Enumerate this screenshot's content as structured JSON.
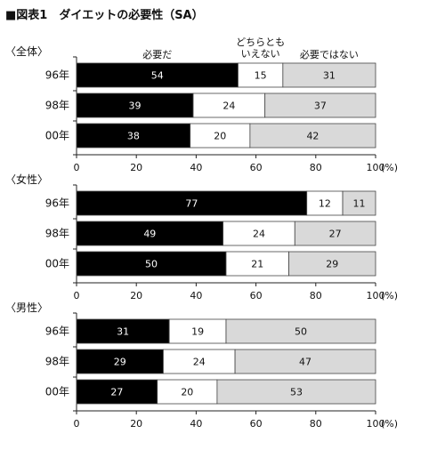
{
  "figure_title": "■図表1　ダイエットの必要性（SA）",
  "axis_unit": "(%)",
  "colors": {
    "series0": "#000000",
    "series1": "#ffffff",
    "series2": "#d9d9d9",
    "stroke": "#444444"
  },
  "chart_data": [
    {
      "type": "bar",
      "orientation": "horizontal",
      "stacked": true,
      "title": "〈全体〉",
      "categories": [
        "96年",
        "98年",
        "00年"
      ],
      "series": [
        {
          "name": "必要だ",
          "values": [
            54,
            39,
            38
          ]
        },
        {
          "name": "どちらとも いえない",
          "values": [
            15,
            24,
            20
          ]
        },
        {
          "name": "必要ではない",
          "values": [
            31,
            37,
            42
          ]
        }
      ],
      "xlim": [
        0,
        100
      ],
      "xticks": [
        "0",
        "20",
        "40",
        "60",
        "80",
        "100"
      ]
    },
    {
      "type": "bar",
      "orientation": "horizontal",
      "stacked": true,
      "title": "〈女性〉",
      "categories": [
        "96年",
        "98年",
        "00年"
      ],
      "series": [
        {
          "name": "必要だ",
          "values": [
            77,
            49,
            50
          ]
        },
        {
          "name": "どちらとも いえない",
          "values": [
            12,
            24,
            21
          ]
        },
        {
          "name": "必要ではない",
          "values": [
            11,
            27,
            29
          ]
        }
      ],
      "xlim": [
        0,
        100
      ],
      "xticks": [
        "0",
        "20",
        "40",
        "60",
        "80",
        "100"
      ]
    },
    {
      "type": "bar",
      "orientation": "horizontal",
      "stacked": true,
      "title": "〈男性〉",
      "categories": [
        "96年",
        "98年",
        "00年"
      ],
      "series": [
        {
          "name": "必要だ",
          "values": [
            31,
            29,
            27
          ]
        },
        {
          "name": "どちらとも いえない",
          "values": [
            19,
            24,
            20
          ]
        },
        {
          "name": "必要ではない",
          "values": [
            50,
            47,
            53
          ]
        }
      ],
      "xlim": [
        0,
        100
      ],
      "xticks": [
        "0",
        "20",
        "40",
        "60",
        "80",
        "100"
      ]
    }
  ]
}
